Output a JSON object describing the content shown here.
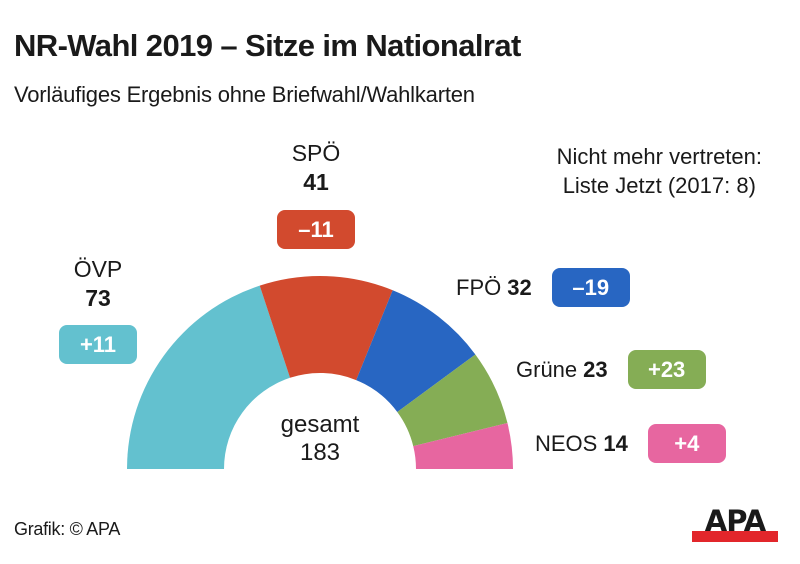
{
  "header": {
    "title": "NR-Wahl 2019 – Sitze im Nationalrat",
    "subtitle": "Vorläufiges Ergebnis ohne Briefwahl/Wahlkarten"
  },
  "note": {
    "line1": "Nicht mehr vertreten:",
    "line2": "Liste Jetzt (2017: 8)"
  },
  "center": {
    "label": "gesamt",
    "total": "183"
  },
  "footer": {
    "credit": "Grafik: © APA",
    "logo_text": "APA",
    "logo_bar_color": "#e2262b"
  },
  "chart_data": {
    "type": "pie",
    "subtype": "parliament-semicircle",
    "title": "NR-Wahl 2019 – Sitze im Nationalrat",
    "subtitle": "Vorläufiges Ergebnis ohne Briefwahl/Wahlkarten",
    "total_seats": 183,
    "categories": [
      "ÖVP",
      "SPÖ",
      "FPÖ",
      "Grüne",
      "NEOS"
    ],
    "values": [
      73,
      41,
      32,
      23,
      14
    ],
    "changes": [
      "+11",
      "–11",
      "–19",
      "+23",
      "+4"
    ],
    "colors": [
      "#63c1cf",
      "#d24a2e",
      "#2866c2",
      "#85ad55",
      "#e766a0"
    ],
    "annotation": "Nicht mehr vertreten: Liste Jetzt (2017: 8)",
    "legend": "none"
  }
}
